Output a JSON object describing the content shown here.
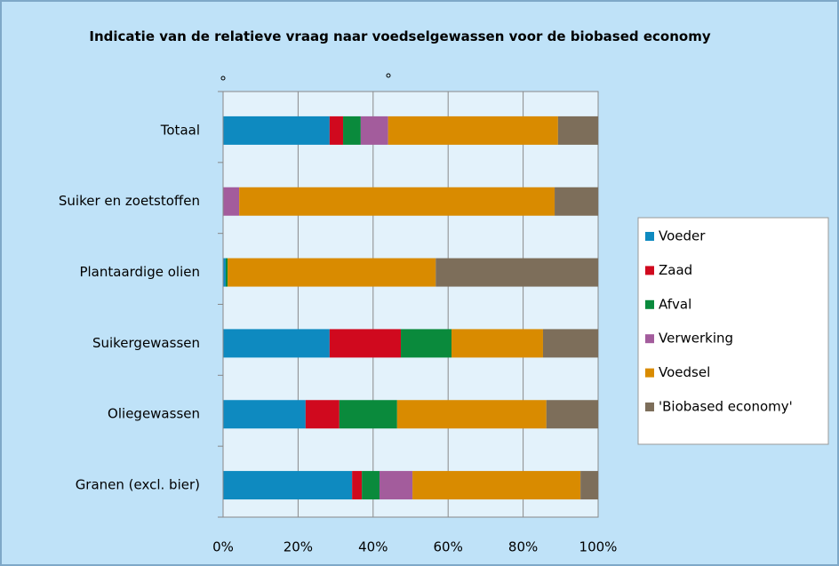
{
  "chart_data": {
    "type": "stacked_bar_horizontal",
    "title": "Indicatie van de relatieve vraag naar voedselgewassen voor de biobased economy",
    "categories": [
      "Totaal",
      "Suiker en zoetstoffen",
      "Plantaardige olien",
      "Suikergewassen",
      "Oliegewassen",
      "Granen (excl. bier)"
    ],
    "series": [
      {
        "name": "Voeder",
        "color": "#0e8ac0",
        "values": [
          28.4,
          0,
          0.7,
          28.4,
          22,
          34.4
        ]
      },
      {
        "name": "Zaad",
        "color": "#d0091e",
        "values": [
          3.6,
          0,
          0,
          19,
          9,
          2.6
        ]
      },
      {
        "name": "Afval",
        "color": "#0a8a3c",
        "values": [
          4.7,
          0,
          0.5,
          13.5,
          15.4,
          4.7
        ]
      },
      {
        "name": "Verwerking",
        "color": "#a35c9c",
        "values": [
          7.3,
          4.3,
          0,
          0,
          0,
          8.8
        ]
      },
      {
        "name": "Voedsel",
        "color": "#d98b00",
        "values": [
          45.3,
          84.1,
          55.5,
          24.4,
          39.8,
          44.8
        ]
      },
      {
        "name": "'Biobased economy'",
        "color": "#7d6e5a",
        "values": [
          10.7,
          11.6,
          43.3,
          14.7,
          13.8,
          4.7
        ]
      }
    ],
    "xlim": [
      0,
      100
    ],
    "xticks": [
      {
        "value": 0,
        "label": "0%"
      },
      {
        "value": 20,
        "label": "20%"
      },
      {
        "value": 40,
        "label": "40%"
      },
      {
        "value": 60,
        "label": "60%"
      },
      {
        "value": 80,
        "label": "80%"
      },
      {
        "value": 100,
        "label": "100%"
      }
    ],
    "grid": true,
    "legend": "right"
  }
}
